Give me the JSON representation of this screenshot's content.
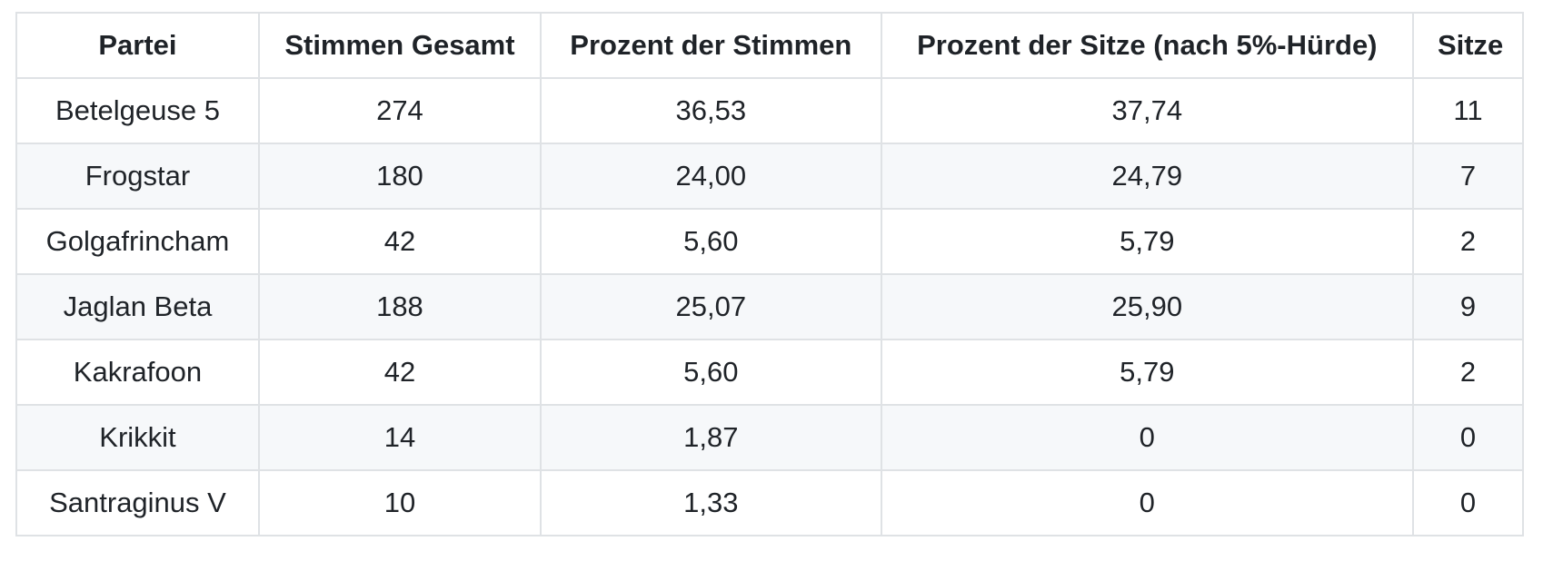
{
  "table": {
    "columns": [
      "Partei",
      "Stimmen Gesamt",
      "Prozent der Stimmen",
      "Prozent der Sitze (nach 5%-Hürde)",
      "Sitze"
    ],
    "rows": [
      [
        "Betelgeuse 5",
        "274",
        "36,53",
        "37,74",
        "11"
      ],
      [
        "Frogstar",
        "180",
        "24,00",
        "24,79",
        "7"
      ],
      [
        "Golgafrincham",
        "42",
        "5,60",
        "5,79",
        "2"
      ],
      [
        "Jaglan Beta",
        "188",
        "25,07",
        "25,90",
        "9"
      ],
      [
        "Kakrafoon",
        "42",
        "5,60",
        "5,79",
        "2"
      ],
      [
        "Krikkit",
        "14",
        "1,87",
        "0",
        "0"
      ],
      [
        "Santraginus V",
        "10",
        "1,33",
        "0",
        "0"
      ]
    ]
  },
  "colors": {
    "text": "#1f2328",
    "border": "#dfe2e5",
    "stripe": "#f6f8fa",
    "background": "#ffffff"
  },
  "chart_data": {
    "type": "table",
    "columns": [
      "Partei",
      "Stimmen Gesamt",
      "Prozent der Stimmen",
      "Prozent der Sitze (nach 5%-Hürde)",
      "Sitze"
    ],
    "rows": [
      [
        "Betelgeuse 5",
        274,
        36.53,
        37.74,
        11
      ],
      [
        "Frogstar",
        180,
        24.0,
        24.79,
        7
      ],
      [
        "Golgafrincham",
        42,
        5.6,
        5.79,
        2
      ],
      [
        "Jaglan Beta",
        188,
        25.07,
        25.9,
        9
      ],
      [
        "Kakrafoon",
        42,
        5.6,
        5.79,
        2
      ],
      [
        "Krikkit",
        14,
        1.87,
        0,
        0
      ],
      [
        "Santraginus V",
        10,
        1.33,
        0,
        0
      ]
    ],
    "notes": "decimal comma formatting in rendered cells; all cells center-aligned"
  }
}
